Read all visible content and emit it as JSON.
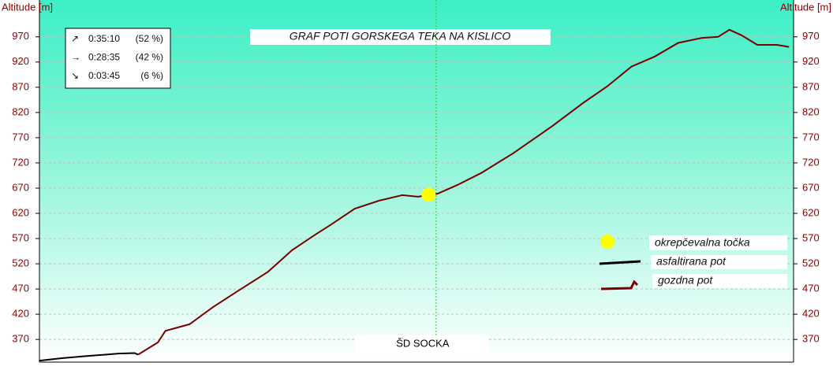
{
  "chart_data": {
    "type": "line",
    "title": "GRAF POTI GORSKEGA TEKA NA KISLICO",
    "y_label": "Altitude [m]",
    "ylim": [
      325,
      1043
    ],
    "yticks": [
      370,
      420,
      470,
      520,
      570,
      620,
      670,
      720,
      770,
      820,
      870,
      920,
      970
    ],
    "xlim": [
      0,
      100
    ],
    "grid": true,
    "series": [
      {
        "name": "asfaltirana pot",
        "color": "#000000",
        "x": [
          0,
          3.1,
          6.3,
          10.5,
          12.6,
          13.1
        ],
        "values": [
          328,
          333,
          337,
          342,
          343,
          340
        ]
      },
      {
        "name": "gozdna pot",
        "color": "#7a0000",
        "x": [
          13.1,
          15.7,
          16.7,
          19.9,
          23.0,
          26.2,
          30.3,
          33.5,
          36.6,
          38.7,
          41.8,
          45.0,
          48.1,
          50.2,
          52.8,
          55.4,
          58.6,
          62.8,
          68.0,
          72.2,
          75.3,
          78.5,
          81.6,
          84.7,
          87.9,
          90.0,
          91.5,
          93.1,
          95.2,
          97.8,
          99.4
        ],
        "values": [
          340,
          364,
          387,
          400,
          434,
          465,
          504,
          547,
          578,
          598,
          629,
          645,
          656,
          653,
          659,
          676,
          700,
          739,
          793,
          840,
          872,
          911,
          931,
          958,
          968,
          970,
          984,
          973,
          954,
          954,
          950
        ]
      }
    ],
    "markers": {
      "name": "okrepčevalna točka",
      "color": "#ffff00",
      "x": [
        51.6
      ],
      "values": [
        657
      ]
    },
    "annotation": {
      "label": "ŠD SOCKA",
      "x": 52.6
    },
    "stats": [
      {
        "direction": "↗",
        "time": "0:35:10",
        "share": "(52 %)"
      },
      {
        "direction": "→",
        "time": "0:28:35",
        "share": "(42 %)"
      },
      {
        "direction": "↘",
        "time": "0:03:45",
        "share": "(6 %)"
      }
    ]
  }
}
